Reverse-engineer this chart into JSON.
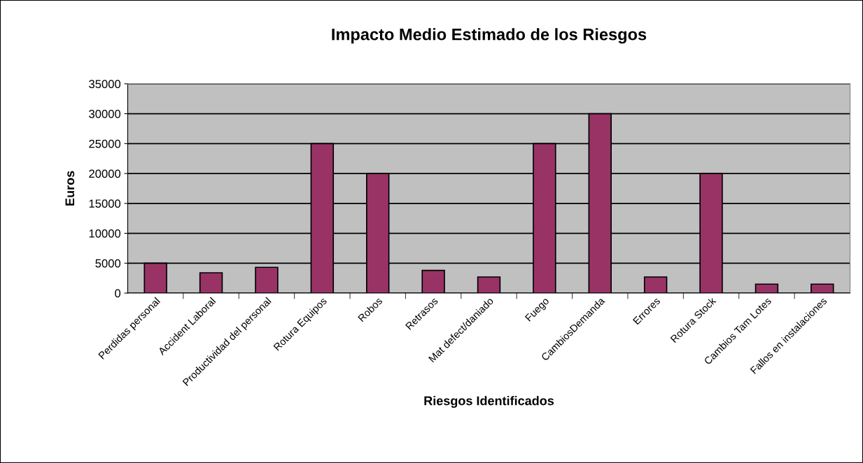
{
  "chart_data": {
    "type": "bar",
    "title": "Impacto Medio Estimado de los Riesgos",
    "xlabel": "Riesgos Identificados",
    "ylabel": "Euros",
    "categories": [
      "Perdidas personal",
      "Accident Laboral",
      "Productividad del personal",
      "Rotura Equipos",
      "Robos",
      "Retrasos",
      "Mat defect/daniado",
      "Fuego",
      "CambiosDemanda",
      "Errores",
      "Rotura Stock",
      "Cambios Tam Lotes",
      "Fallos en instalaciones"
    ],
    "values": [
      5000,
      3400,
      4300,
      25000,
      20000,
      3800,
      2700,
      25000,
      30000,
      2700,
      20000,
      1500,
      1500
    ],
    "color": "#993366",
    "ylim": [
      0,
      35000
    ],
    "yticks": [
      0,
      5000,
      10000,
      15000,
      20000,
      25000,
      30000,
      35000
    ],
    "grid": "y",
    "legend": false
  }
}
